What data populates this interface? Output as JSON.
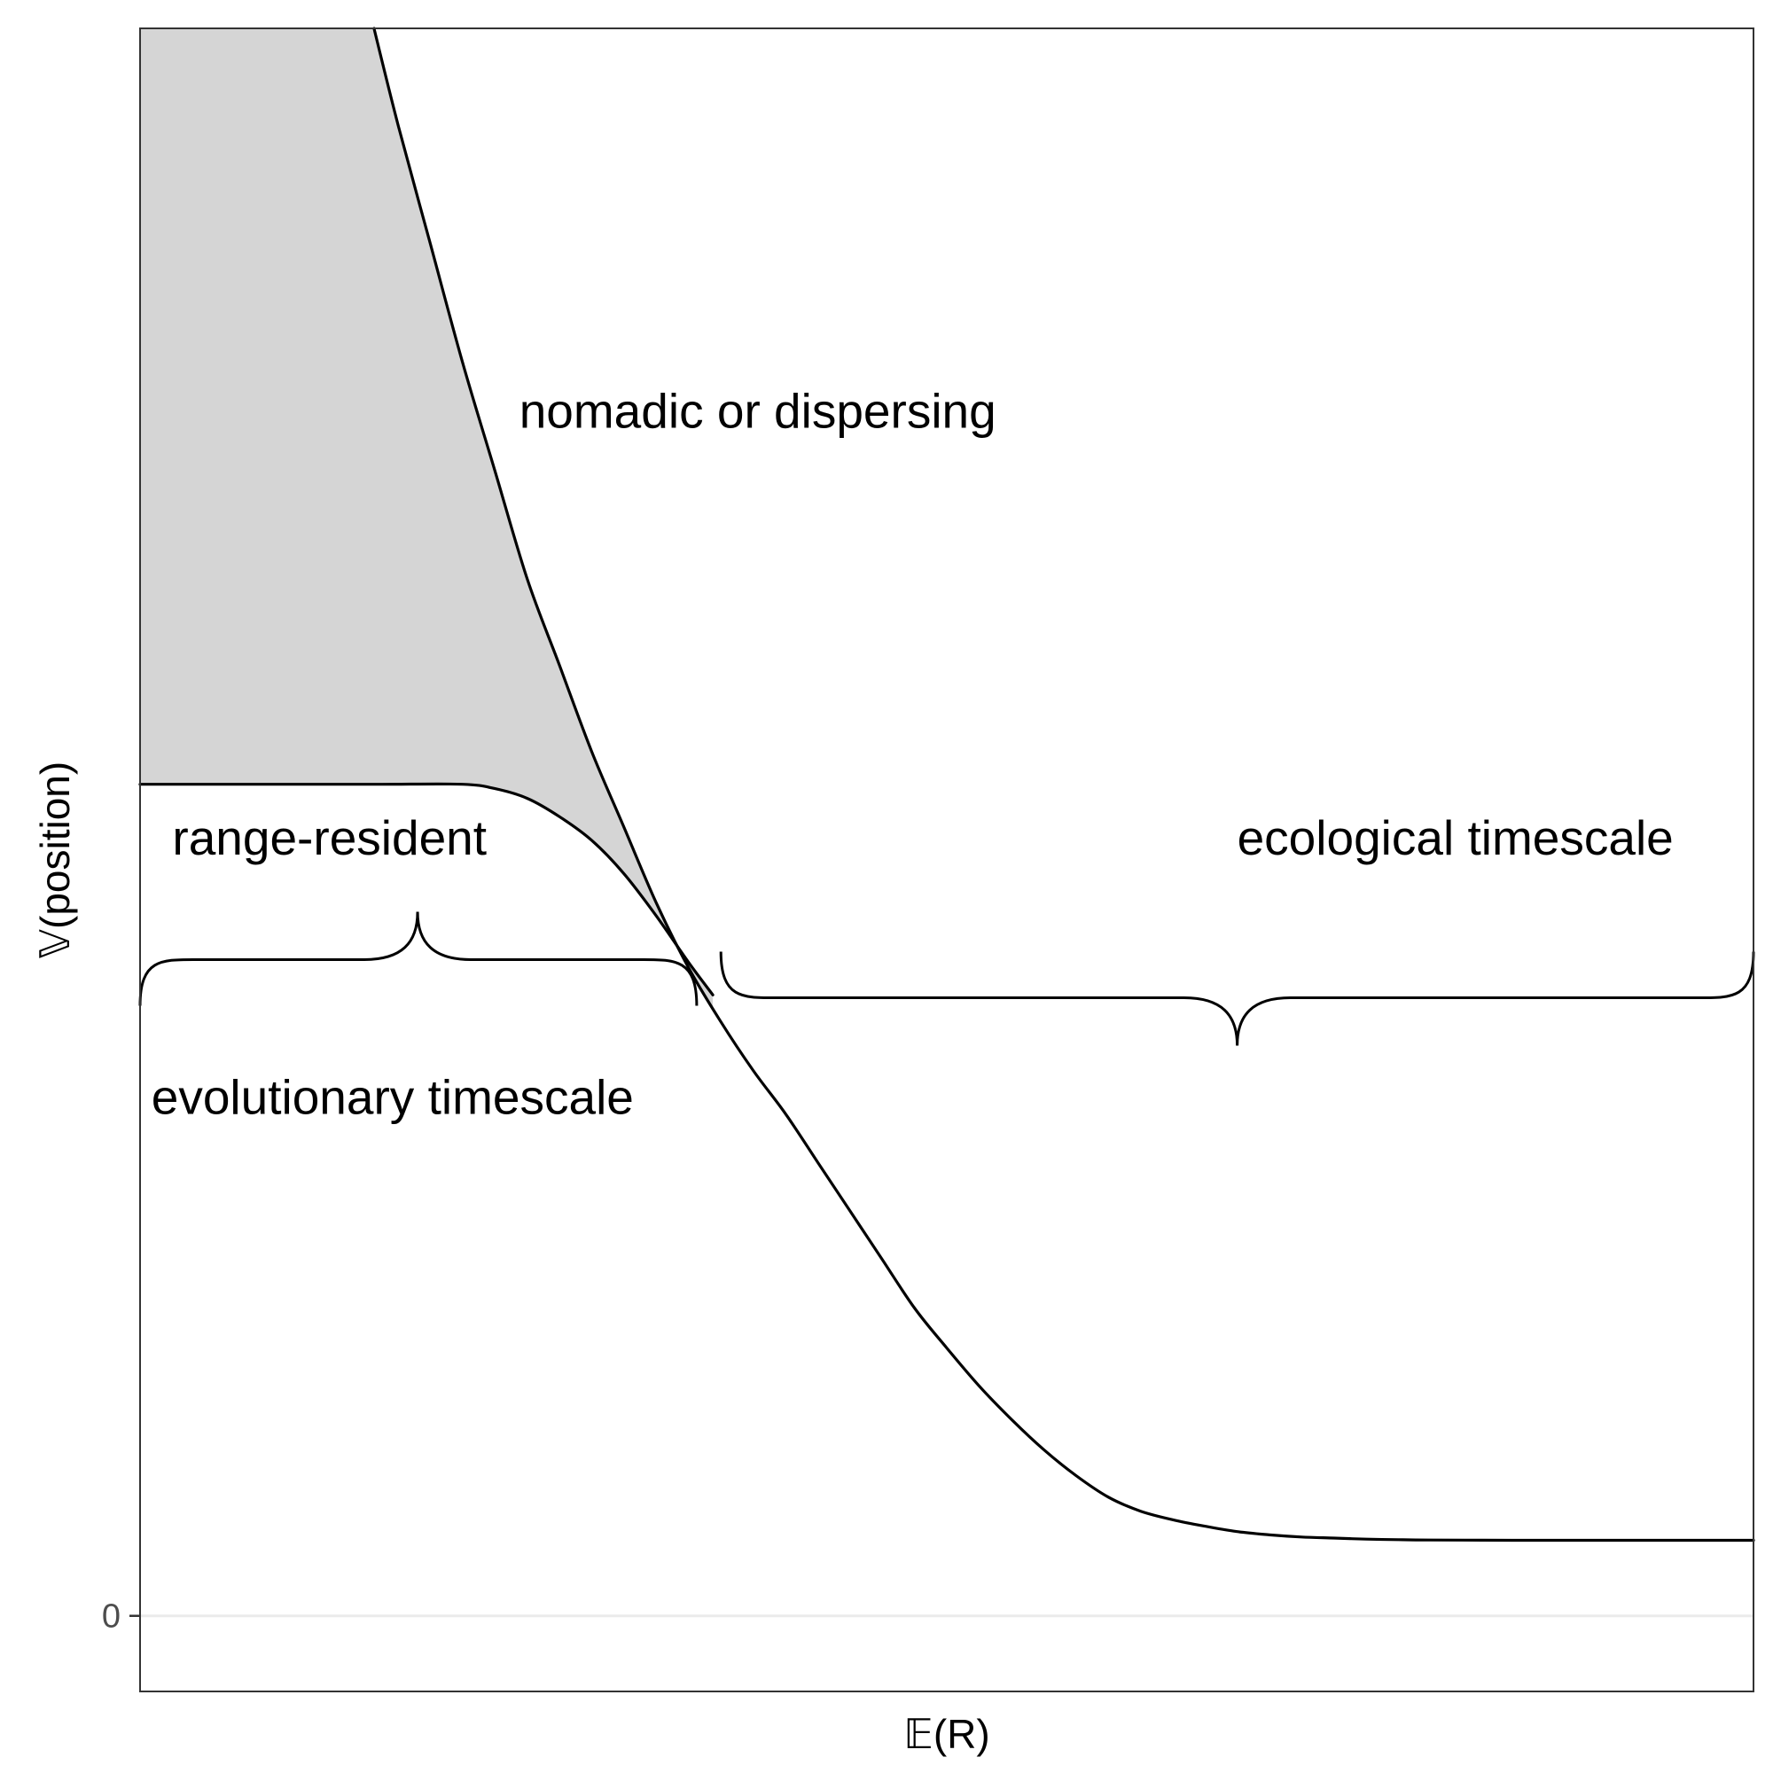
{
  "chart_data": {
    "type": "line",
    "title": "",
    "xlabel": "𝔼(R)",
    "ylabel": "𝕍(position)",
    "x_ticks": [],
    "y_ticks": [
      {
        "value": 0,
        "label": "0"
      }
    ],
    "xlim": [
      0,
      100
    ],
    "ylim": [
      -7,
      147
    ],
    "grid": {
      "major_y_at_zero": true,
      "other": false
    },
    "legend": "none",
    "series": [
      {
        "role": "ecological-curve",
        "color": "#000000",
        "x": [
          14.5,
          16,
          18,
          20,
          22,
          24,
          26,
          28,
          30,
          32,
          34,
          36,
          38,
          40,
          42,
          44,
          46,
          48,
          50,
          52,
          54,
          56,
          58,
          60,
          62,
          64,
          66,
          68,
          70,
          72,
          74,
          76,
          78,
          80,
          85,
          90,
          95,
          100
        ],
        "y": [
          147,
          138,
          127,
          116,
          106,
          96,
          88,
          80,
          73,
          66,
          60,
          55,
          50.5,
          46.5,
          42,
          37.5,
          33,
          28.5,
          24.8,
          21.3,
          18.2,
          15.4,
          13,
          11,
          9.7,
          8.9,
          8.3,
          7.8,
          7.5,
          7.3,
          7.2,
          7.1,
          7.05,
          7.02,
          7,
          7,
          7,
          7
        ]
      },
      {
        "role": "evolutionary-curve",
        "color": "#000000",
        "x": [
          0,
          5,
          10,
          15,
          20,
          22,
          24,
          26,
          28,
          30,
          32,
          34,
          35.5
        ],
        "y": [
          77,
          77,
          77,
          77,
          77,
          76.6,
          75.7,
          74,
          71.8,
          68.7,
          64.8,
          60.5,
          57.5
        ]
      }
    ],
    "shaded_region": {
      "color": "#d5d5d5",
      "between": [
        "evolutionary-curve",
        "ecological-curve"
      ],
      "x_range": [
        0,
        35.5
      ]
    },
    "annotations": [
      {
        "text": "nomadic or dispersing",
        "x": 23.5,
        "y": 110
      },
      {
        "text": "range-resident",
        "x": 2,
        "y": 70.5
      },
      {
        "text": "ecological timescale",
        "x": 68,
        "y": 70.5
      },
      {
        "text": "evolutionary timescale",
        "x": 0.7,
        "y": 46.5
      }
    ],
    "braces": [
      {
        "label": "ecological timescale",
        "x_range": [
          36,
          100
        ],
        "y": 61.5,
        "opens": "down",
        "tip_x": 68
      },
      {
        "label": "evolutionary timescale",
        "x_range": [
          0,
          34.5
        ],
        "y": 56.5,
        "opens": "up",
        "tip_x": 17.2
      }
    ]
  }
}
